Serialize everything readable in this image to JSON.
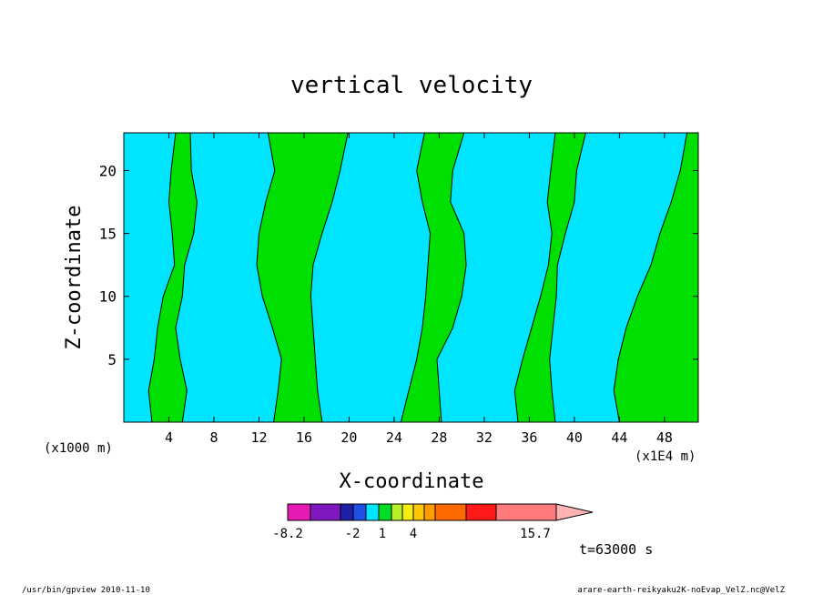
{
  "chart_data": {
    "type": "heatmap",
    "title": "vertical velocity",
    "xlabel": "X-coordinate",
    "ylabel": "Z-coordinate",
    "x_scale_note": "(x1000 m)",
    "x_unit_note": "(x1E4 m)",
    "xlim": [
      0,
      51
    ],
    "ylim": [
      0,
      23
    ],
    "x_ticks": [
      "4",
      "8",
      "12",
      "16",
      "20",
      "24",
      "28",
      "32",
      "36",
      "40",
      "44",
      "48"
    ],
    "y_ticks": [
      "5",
      "10",
      "15",
      "20"
    ],
    "levels": [
      {
        "color": "#e619b3"
      },
      {
        "color": "#7f19bf"
      },
      {
        "color": "#1f1fa8"
      },
      {
        "color": "#1f4fe6"
      },
      {
        "color": "#00e5ff"
      },
      {
        "color": "#00dd22"
      },
      {
        "color": "#b8f028"
      },
      {
        "color": "#f2ee10"
      },
      {
        "color": "#ffc800"
      },
      {
        "color": "#ff9c00"
      },
      {
        "color": "#ff6a00"
      },
      {
        "color": "#ff1a1a"
      },
      {
        "color": "#ff7a7a"
      },
      {
        "color": "#ffb3b3"
      }
    ],
    "colorbar_labels": [
      "-8.2",
      "-2",
      "1",
      "4",
      "15.7"
    ],
    "field_colors": {
      "downward": "#00e5ff",
      "upward": "#00e000"
    },
    "upward_columns": [
      {
        "x_left": [
          2.5,
          2.2,
          2.7,
          3.0,
          3.5,
          4.5,
          4.3,
          4.0,
          4.2,
          4.6
        ],
        "x_right": [
          5.2,
          5.6,
          5.0,
          4.6,
          5.2,
          5.4,
          6.2,
          6.5,
          6.0,
          5.9
        ]
      },
      {
        "x_left": [
          13.3,
          13.7,
          14.0,
          13.2,
          12.3,
          11.8,
          12.0,
          12.6,
          13.4,
          12.8
        ],
        "x_right": [
          17.6,
          17.2,
          17.0,
          16.8,
          16.6,
          16.8,
          17.6,
          18.5,
          19.2,
          19.9
        ]
      },
      {
        "x_left": [
          24.6,
          25.3,
          26.0,
          26.5,
          26.8,
          27.0,
          27.2,
          26.5,
          26.0,
          26.7
        ],
        "x_right": [
          28.2,
          28.0,
          27.8,
          29.2,
          30.0,
          30.4,
          30.2,
          29.0,
          29.2,
          30.2
        ]
      },
      {
        "x_left": [
          35.0,
          34.7,
          35.4,
          36.2,
          37.0,
          37.7,
          38.0,
          37.6,
          37.9,
          38.3
        ],
        "x_right": [
          38.3,
          38.0,
          37.8,
          38.1,
          38.4,
          38.5,
          39.2,
          40.0,
          40.2,
          41.0
        ]
      },
      {
        "x_left": [
          44.0,
          43.5,
          43.9,
          44.6,
          45.6,
          46.8,
          47.6,
          48.6,
          49.4,
          50.0
        ],
        "x_right": [
          51.0,
          51.0,
          51.0,
          51.0,
          51.0,
          51.0,
          51.0,
          51.0,
          51.0,
          51.0
        ]
      }
    ],
    "column_heights": [
      0,
      2.5,
      5,
      7.5,
      10,
      12.5,
      15,
      17.5,
      20,
      23
    ],
    "time_label": "t=63000 s"
  },
  "footer": {
    "left": "/usr/bin/gpview  2010-11-10",
    "right": "arare-earth-reikyaku2K-noEvap_VelZ.nc@VelZ"
  }
}
